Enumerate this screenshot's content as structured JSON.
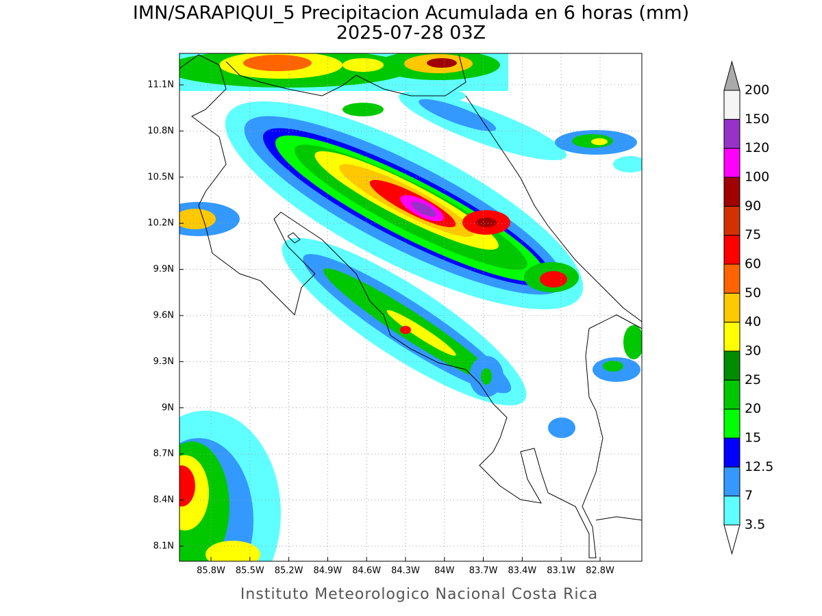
{
  "title": "IMN/SARAPIQUI_5 Precipitacion Acumulada en 6 horas (mm)",
  "subtitle": "2025-07-28 03Z",
  "map": {
    "lat_labels": [
      "11.1N",
      "10.8N",
      "10.5N",
      "10.2N",
      "9.9N",
      "9.6N",
      "9.3N",
      "9N",
      "8.7N",
      "8.4N",
      "8.1N"
    ],
    "lon_labels": [
      "85.8W",
      "85.5W",
      "85.2W",
      "84.9W",
      "84.6W",
      "84.3W",
      "84W",
      "83.7W",
      "83.4W",
      "83.1W",
      "82.8W"
    ]
  },
  "colorbar": {
    "labels": [
      "3.5",
      "7",
      "12.5",
      "15",
      "20",
      "25",
      "30",
      "40",
      "50",
      "60",
      "75",
      "90",
      "100",
      "120",
      "150",
      "200"
    ],
    "colors": [
      "#5fffff",
      "#3399ff",
      "#0000ff",
      "#00ff00",
      "#00c800",
      "#008c00",
      "#ffff00",
      "#ffc800",
      "#ff6400",
      "#ff0000",
      "#d23200",
      "#a00000",
      "#ff00ff",
      "#9632c8",
      "#f5f5f5"
    ],
    "under_color": "#ffffff",
    "over_color": "#aaaaaa"
  },
  "footer": "Instituto Meteorologico Nacional Costa Rica"
}
